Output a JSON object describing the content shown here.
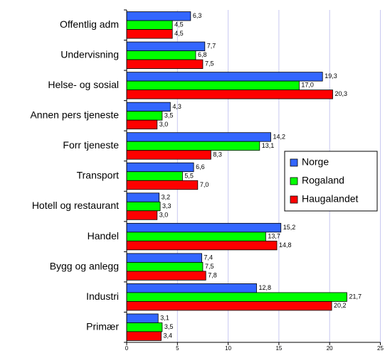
{
  "chart_data": {
    "type": "bar",
    "orientation": "horizontal",
    "categories": [
      "Offentlig adm",
      "Undervisning",
      "Helse- og sosial",
      "Annen pers tjeneste",
      "Forr tjeneste",
      "Transport",
      "Hotell og restaurant",
      "Handel",
      "Bygg og anlegg",
      "Industri",
      "Primær"
    ],
    "series": [
      {
        "name": "Norge",
        "color": "#3366ff",
        "values": [
          6.3,
          7.7,
          19.3,
          4.3,
          14.2,
          6.6,
          3.2,
          15.2,
          7.4,
          12.8,
          3.1
        ],
        "value_labels": [
          "6,3",
          "7,7",
          "19,3",
          "4,3",
          "14,2",
          "6,6",
          "3,2",
          "15,2",
          "7,4",
          "12,8",
          "3,1"
        ]
      },
      {
        "name": "Rogaland",
        "color": "#00ff00",
        "values": [
          4.5,
          6.8,
          17.0,
          3.5,
          13.1,
          5.5,
          3.3,
          13.7,
          7.5,
          21.7,
          3.5
        ],
        "value_labels": [
          "4,5",
          "6,8",
          "17,0",
          "3,5",
          "13,1",
          "5,5",
          "3,3",
          "13,7",
          "7,5",
          "21,7",
          "3,5"
        ]
      },
      {
        "name": "Haugalandet",
        "color": "#ff0000",
        "values": [
          4.5,
          7.5,
          20.3,
          3.0,
          8.3,
          7.0,
          3.0,
          14.8,
          7.8,
          20.2,
          3.4
        ],
        "value_labels": [
          "4,5",
          "7,5",
          "20,3",
          "3,0",
          "8,3",
          "7,0",
          "3,0",
          "14,8",
          "7,8",
          "20,2",
          "3,4"
        ]
      }
    ],
    "xlim": [
      0,
      25
    ],
    "xticks": [
      0,
      5,
      10,
      15,
      20,
      25
    ],
    "grid": true,
    "legend": "right"
  }
}
